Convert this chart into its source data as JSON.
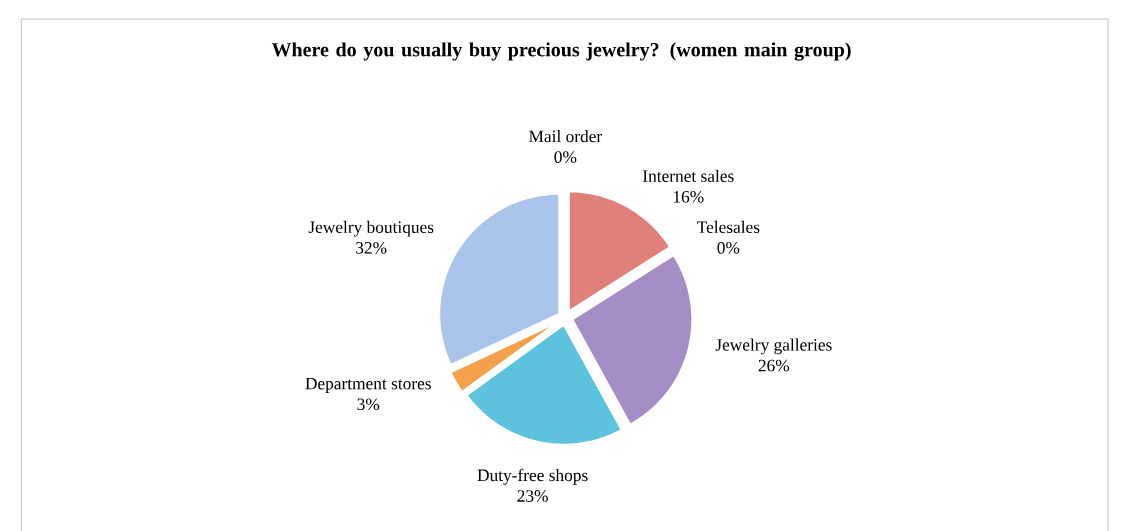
{
  "chart_data": {
    "type": "pie",
    "title": "Where do you usually buy precious jewelry? (women main group)",
    "categories": [
      "Internet sales",
      "Telesales",
      "Jewelry galleries",
      "Duty-free shops",
      "Department stores",
      "Jewelry boutiques",
      "Mail order"
    ],
    "values": [
      16,
      0,
      26,
      23,
      3,
      32,
      0
    ],
    "value_labels": [
      "16%",
      "0%",
      "26%",
      "23%",
      "3%",
      "32%",
      "0%"
    ],
    "colors": [
      "#e0807a",
      "#9bbb59",
      "#a48cc4",
      "#5cc2de",
      "#f4a04c",
      "#a9c3ea",
      "#c0504d"
    ]
  }
}
